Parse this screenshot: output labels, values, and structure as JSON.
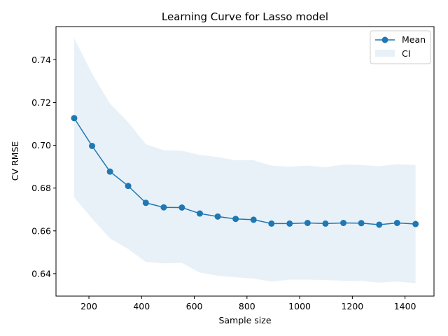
{
  "chart_data": {
    "type": "line",
    "title": "Learning Curve for Lasso model",
    "xlabel": "Sample size",
    "ylabel": "CV RMSE",
    "xlim": [
      75,
      1510
    ],
    "ylim": [
      0.6295,
      0.7555
    ],
    "x_ticks": [
      200,
      400,
      600,
      800,
      1000,
      1200,
      1400
    ],
    "y_ticks": [
      0.64,
      0.66,
      0.68,
      0.7,
      0.72,
      0.74
    ],
    "x_tick_labels": [
      "200",
      "400",
      "600",
      "800",
      "1000",
      "1200",
      "1400"
    ],
    "y_tick_labels": [
      "0.64",
      "0.66",
      "0.68",
      "0.70",
      "0.72",
      "0.74"
    ],
    "x": [
      144,
      212,
      280,
      349,
      416,
      484,
      553,
      621,
      689,
      757,
      825,
      893,
      962,
      1030,
      1098,
      1166,
      1234,
      1302,
      1370,
      1440
    ],
    "series": [
      {
        "name": "Mean",
        "color": "#1f77b4",
        "values": [
          0.7127,
          0.6997,
          0.6877,
          0.681,
          0.6731,
          0.671,
          0.6709,
          0.6681,
          0.6667,
          0.6656,
          0.6652,
          0.6634,
          0.6634,
          0.6637,
          0.6634,
          0.6637,
          0.6636,
          0.6629,
          0.6637,
          0.6632
        ]
      }
    ],
    "ci": {
      "name": "CI",
      "color": "#1f77b4",
      "lower": [
        0.6757,
        0.6657,
        0.6565,
        0.6515,
        0.6455,
        0.6448,
        0.645,
        0.6405,
        0.639,
        0.6383,
        0.6377,
        0.6363,
        0.6372,
        0.6372,
        0.637,
        0.6367,
        0.6366,
        0.6358,
        0.6363,
        0.6355
      ],
      "upper": [
        0.75,
        0.7335,
        0.7195,
        0.7108,
        0.7005,
        0.6977,
        0.6975,
        0.6955,
        0.6945,
        0.693,
        0.693,
        0.6905,
        0.69,
        0.6905,
        0.6898,
        0.691,
        0.6908,
        0.6902,
        0.6912,
        0.6908
      ]
    },
    "legend": {
      "position": "top-right",
      "entries": [
        "Mean",
        "CI"
      ]
    },
    "grid": false
  }
}
